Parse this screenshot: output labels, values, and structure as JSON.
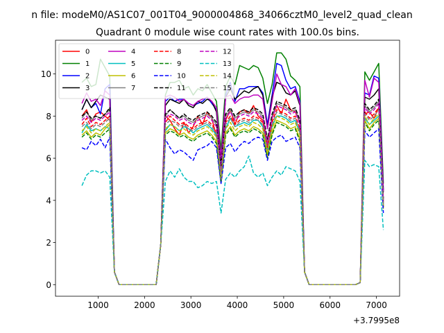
{
  "chart_data": {
    "type": "line",
    "suptitle": "n file: modeM0/AS1C07_001T04_9000004868_34066cztM0_level2_quad_clean",
    "title": "Quadrant 0 module wise count rates with 100.0s bins.",
    "xlabel": "",
    "ylabel": "",
    "x_offset_label": "+3.7995e8",
    "xlim": [
      80,
      7500
    ],
    "ylim": [
      -0.55,
      11.6
    ],
    "x_ticks": [
      1000,
      2000,
      3000,
      4000,
      5000,
      6000,
      7000
    ],
    "x_tick_labels": [
      "1000",
      "2000",
      "3000",
      "4000",
      "5000",
      "6000",
      "7000"
    ],
    "y_ticks": [
      0,
      2,
      4,
      6,
      8,
      10
    ],
    "y_tick_labels": [
      "0",
      "2",
      "4",
      "6",
      "8",
      "10"
    ],
    "legend_location": "upper-left",
    "x": [
      650,
      750,
      850,
      950,
      1050,
      1150,
      1250,
      1350,
      1450,
      1550,
      1650,
      1750,
      1850,
      1950,
      2050,
      2150,
      2250,
      2350,
      2450,
      2550,
      2650,
      2750,
      2850,
      2950,
      3050,
      3150,
      3250,
      3350,
      3450,
      3550,
      3650,
      3750,
      3850,
      3950,
      4050,
      4150,
      4250,
      4350,
      4450,
      4550,
      4650,
      4750,
      4850,
      4950,
      5050,
      5150,
      5250,
      5350,
      5450,
      5550,
      5650,
      5750,
      5850,
      5950,
      6050,
      6150,
      6250,
      6350,
      6450,
      6550,
      6650,
      6750,
      6850,
      6950,
      7050,
      7150
    ],
    "gaps": [
      1650,
      2150,
      5650,
      6150
    ],
    "series": [
      {
        "name": "0",
        "color": "#ff0000",
        "dash": false,
        "values": [
          8.0,
          8.3,
          7.7,
          8.1,
          8.2,
          8.0,
          7.8,
          0.6,
          0.0,
          0.0,
          0.0,
          0.0,
          0.0,
          0.0,
          0.0,
          0.0,
          0.0,
          1.9,
          8.0,
          7.8,
          7.4,
          7.1,
          7.7,
          7.2,
          7.5,
          8.0,
          7.6,
          8.2,
          7.9,
          7.0,
          5.1,
          7.8,
          8.3,
          7.6,
          8.2,
          8.3,
          8.1,
          8.5,
          8.0,
          7.8,
          6.6,
          7.9,
          8.5,
          8.1,
          8.8,
          8.3,
          8.2,
          7.7,
          0.6,
          0.0,
          0.0,
          0.0,
          0.0,
          0.0,
          0.0,
          0.0,
          0.0,
          0.0,
          0.0,
          0.0,
          0.1,
          8.1,
          8.2,
          7.9,
          8.4,
          3.7
        ]
      },
      {
        "name": "1",
        "color": "#008000",
        "dash": false,
        "values": [
          9.6,
          9.8,
          9.4,
          9.5,
          10.7,
          10.3,
          9.9,
          0.6,
          0.0,
          0.0,
          0.0,
          0.0,
          0.0,
          0.0,
          0.0,
          0.0,
          0.0,
          1.9,
          9.0,
          9.6,
          9.6,
          9.7,
          9.3,
          9.4,
          9.0,
          9.3,
          9.2,
          9.5,
          9.1,
          8.7,
          6.4,
          9.4,
          9.9,
          9.5,
          10.4,
          10.3,
          10.2,
          10.4,
          10.3,
          9.8,
          8.6,
          9.5,
          11.0,
          11.0,
          10.7,
          9.9,
          9.7,
          9.4,
          0.6,
          0.0,
          0.0,
          0.0,
          0.0,
          0.0,
          0.0,
          0.0,
          0.0,
          0.0,
          0.0,
          0.0,
          0.1,
          10.1,
          9.7,
          10.1,
          10.5,
          4.8
        ]
      },
      {
        "name": "2",
        "color": "#0000ff",
        "dash": false,
        "values": [
          8.3,
          8.8,
          8.4,
          8.6,
          8.1,
          9.3,
          9.5,
          0.6,
          0.0,
          0.0,
          0.0,
          0.0,
          0.0,
          0.0,
          0.0,
          0.0,
          0.0,
          1.9,
          8.7,
          8.9,
          8.7,
          8.8,
          8.8,
          8.6,
          8.5,
          8.6,
          8.7,
          8.9,
          8.6,
          8.3,
          5.7,
          9.0,
          9.6,
          8.7,
          9.3,
          9.3,
          9.4,
          9.4,
          9.4,
          9.1,
          7.6,
          9.0,
          10.5,
          10.4,
          9.7,
          9.3,
          9.4,
          8.7,
          0.6,
          0.0,
          0.0,
          0.0,
          0.0,
          0.0,
          0.0,
          0.0,
          0.0,
          0.0,
          0.0,
          0.0,
          0.1,
          9.1,
          9.0,
          9.9,
          9.8,
          4.5
        ]
      },
      {
        "name": "3",
        "color": "#000000",
        "dash": false,
        "values": [
          8.3,
          8.8,
          8.4,
          8.7,
          9.0,
          8.9,
          8.8,
          0.6,
          0.0,
          0.0,
          0.0,
          0.0,
          0.0,
          0.0,
          0.0,
          0.0,
          0.0,
          1.9,
          8.5,
          8.8,
          8.7,
          8.6,
          8.8,
          8.5,
          8.4,
          8.7,
          8.6,
          8.8,
          8.7,
          8.2,
          5.9,
          8.9,
          9.3,
          8.8,
          9.0,
          9.2,
          9.1,
          9.3,
          9.4,
          9.0,
          7.4,
          8.9,
          9.6,
          9.5,
          9.1,
          9.0,
          9.2,
          8.5,
          0.6,
          0.0,
          0.0,
          0.0,
          0.0,
          0.0,
          0.0,
          0.0,
          0.0,
          0.0,
          0.0,
          0.0,
          0.1,
          8.9,
          8.8,
          9.0,
          9.3,
          4.4
        ]
      },
      {
        "name": "4",
        "color": "#bf00bf",
        "dash": false,
        "values": [
          8.6,
          9.1,
          8.7,
          8.8,
          8.5,
          9.2,
          9.0,
          0.6,
          0.0,
          0.0,
          0.0,
          0.0,
          0.0,
          0.0,
          0.0,
          0.0,
          0.0,
          1.9,
          8.9,
          9.0,
          8.9,
          8.7,
          8.8,
          8.6,
          8.5,
          8.7,
          8.8,
          8.9,
          8.7,
          8.4,
          6.0,
          8.9,
          9.0,
          8.6,
          8.8,
          8.9,
          8.9,
          9.0,
          9.0,
          8.8,
          7.4,
          8.7,
          10.0,
          9.5,
          9.4,
          9.0,
          9.3,
          8.6,
          0.6,
          0.0,
          0.0,
          0.0,
          0.0,
          0.0,
          0.0,
          0.0,
          0.0,
          0.0,
          0.0,
          0.0,
          0.1,
          9.7,
          8.9,
          9.8,
          9.6,
          4.4
        ]
      },
      {
        "name": "5",
        "color": "#00bfbf",
        "dash": false,
        "values": [
          7.2,
          7.6,
          7.3,
          7.4,
          7.3,
          7.5,
          7.4,
          0.6,
          0.0,
          0.0,
          0.0,
          0.0,
          0.0,
          0.0,
          0.0,
          0.0,
          0.0,
          1.9,
          7.3,
          7.6,
          7.5,
          7.3,
          7.5,
          7.4,
          7.2,
          7.4,
          7.5,
          7.6,
          7.4,
          7.1,
          5.1,
          7.4,
          7.9,
          7.5,
          7.6,
          7.7,
          7.6,
          7.8,
          7.8,
          7.5,
          6.3,
          7.5,
          8.0,
          8.0,
          7.9,
          7.7,
          7.8,
          7.2,
          0.6,
          0.0,
          0.0,
          0.0,
          0.0,
          0.0,
          0.0,
          0.0,
          0.0,
          0.0,
          0.0,
          0.0,
          0.1,
          7.9,
          7.6,
          7.8,
          8.0,
          3.8
        ]
      },
      {
        "name": "6",
        "color": "#bfbf00",
        "dash": false,
        "values": [
          7.1,
          7.3,
          7.0,
          7.2,
          7.1,
          7.4,
          7.6,
          0.6,
          0.0,
          0.0,
          0.0,
          0.0,
          0.0,
          0.0,
          0.0,
          0.0,
          0.0,
          1.9,
          7.2,
          7.4,
          7.3,
          7.1,
          7.2,
          7.0,
          6.9,
          7.1,
          7.2,
          7.3,
          7.1,
          6.8,
          4.9,
          7.2,
          7.5,
          7.1,
          7.3,
          7.4,
          7.3,
          7.5,
          7.4,
          7.2,
          6.1,
          7.2,
          7.8,
          7.7,
          7.6,
          7.4,
          7.5,
          6.9,
          0.6,
          0.0,
          0.0,
          0.0,
          0.0,
          0.0,
          0.0,
          0.0,
          0.0,
          0.0,
          0.0,
          0.0,
          0.1,
          7.8,
          7.4,
          7.7,
          7.9,
          3.6
        ]
      },
      {
        "name": "7",
        "color": "#808080",
        "dash": false,
        "values": [
          7.9,
          8.2,
          7.8,
          8.0,
          7.9,
          8.1,
          8.3,
          0.6,
          0.0,
          0.0,
          0.0,
          0.0,
          0.0,
          0.0,
          0.0,
          0.0,
          0.0,
          1.9,
          8.0,
          8.3,
          8.1,
          7.9,
          8.0,
          7.8,
          7.7,
          7.9,
          8.0,
          8.1,
          7.9,
          7.6,
          5.5,
          8.0,
          8.3,
          7.9,
          8.1,
          8.2,
          8.1,
          8.3,
          8.2,
          8.0,
          6.8,
          8.0,
          8.6,
          8.5,
          8.4,
          8.2,
          8.3,
          7.7,
          0.6,
          0.0,
          0.0,
          0.0,
          0.0,
          0.0,
          0.0,
          0.0,
          0.0,
          0.0,
          0.0,
          0.0,
          0.1,
          8.5,
          8.2,
          8.4,
          8.7,
          4.0
        ]
      },
      {
        "name": "8",
        "color": "#ff0000",
        "dash": true,
        "values": [
          7.6,
          7.9,
          7.5,
          7.7,
          7.6,
          7.8,
          8.0,
          0.6,
          0.0,
          0.0,
          0.0,
          0.0,
          0.0,
          0.0,
          0.0,
          0.0,
          0.0,
          1.9,
          7.7,
          8.0,
          7.8,
          7.6,
          7.7,
          7.5,
          7.4,
          7.6,
          7.7,
          7.8,
          7.6,
          7.3,
          5.3,
          7.7,
          8.0,
          7.6,
          7.8,
          7.9,
          7.8,
          8.0,
          7.9,
          7.7,
          6.5,
          7.7,
          8.3,
          8.2,
          8.1,
          7.9,
          8.0,
          7.4,
          0.6,
          0.0,
          0.0,
          0.0,
          0.0,
          0.0,
          0.0,
          0.0,
          0.0,
          0.0,
          0.0,
          0.0,
          0.1,
          8.2,
          7.9,
          8.1,
          8.4,
          3.9
        ]
      },
      {
        "name": "9",
        "color": "#008000",
        "dash": true,
        "values": [
          7.0,
          7.2,
          6.9,
          7.1,
          7.0,
          7.2,
          7.4,
          0.6,
          0.0,
          0.0,
          0.0,
          0.0,
          0.0,
          0.0,
          0.0,
          0.0,
          0.0,
          1.9,
          7.1,
          7.3,
          7.2,
          7.0,
          7.1,
          6.9,
          6.8,
          7.0,
          7.1,
          7.2,
          7.0,
          6.7,
          4.8,
          7.1,
          7.4,
          7.0,
          7.2,
          7.3,
          7.2,
          7.4,
          7.3,
          7.1,
          6.0,
          7.1,
          7.7,
          7.6,
          7.5,
          7.3,
          7.4,
          6.8,
          0.6,
          0.0,
          0.0,
          0.0,
          0.0,
          0.0,
          0.0,
          0.0,
          0.0,
          0.0,
          0.0,
          0.0,
          0.1,
          7.7,
          7.3,
          7.6,
          7.8,
          3.6
        ]
      },
      {
        "name": "10",
        "color": "#0000ff",
        "dash": true,
        "values": [
          6.5,
          6.4,
          6.8,
          6.6,
          6.9,
          6.5,
          7.0,
          0.6,
          0.0,
          0.0,
          0.0,
          0.0,
          0.0,
          0.0,
          0.0,
          0.0,
          0.0,
          1.9,
          6.9,
          6.5,
          6.2,
          6.4,
          6.3,
          6.1,
          5.9,
          6.4,
          6.5,
          6.6,
          6.8,
          6.5,
          4.8,
          6.5,
          6.7,
          6.3,
          6.6,
          6.8,
          6.7,
          6.9,
          7.0,
          6.9,
          5.9,
          6.8,
          7.0,
          7.1,
          6.8,
          6.9,
          7.0,
          6.5,
          0.6,
          0.0,
          0.0,
          0.0,
          0.0,
          0.0,
          0.0,
          0.0,
          0.0,
          0.0,
          0.0,
          0.0,
          0.1,
          7.3,
          7.0,
          7.2,
          7.4,
          3.4
        ]
      },
      {
        "name": "11",
        "color": "#000000",
        "dash": true,
        "values": [
          8.0,
          8.2,
          7.9,
          8.0,
          7.9,
          8.1,
          8.4,
          0.6,
          0.0,
          0.0,
          0.0,
          0.0,
          0.0,
          0.0,
          0.0,
          0.0,
          0.0,
          1.9,
          8.1,
          8.3,
          8.1,
          7.9,
          8.1,
          7.9,
          7.8,
          8.0,
          8.1,
          8.2,
          8.0,
          7.7,
          5.6,
          8.1,
          8.4,
          8.0,
          8.2,
          8.3,
          8.2,
          8.4,
          8.3,
          8.1,
          6.9,
          8.1,
          8.7,
          8.6,
          8.5,
          8.3,
          8.4,
          7.8,
          0.6,
          0.0,
          0.0,
          0.0,
          0.0,
          0.0,
          0.0,
          0.0,
          0.0,
          0.0,
          0.0,
          0.0,
          0.1,
          8.6,
          8.3,
          8.5,
          8.8,
          4.1
        ]
      },
      {
        "name": "12",
        "color": "#bf00bf",
        "dash": true,
        "values": [
          7.8,
          8.0,
          7.7,
          7.9,
          7.8,
          8.0,
          8.2,
          0.6,
          0.0,
          0.0,
          0.0,
          0.0,
          0.0,
          0.0,
          0.0,
          0.0,
          0.0,
          1.9,
          7.9,
          8.1,
          8.0,
          7.8,
          7.9,
          7.7,
          7.6,
          7.8,
          7.9,
          8.0,
          7.8,
          7.5,
          5.4,
          7.9,
          8.2,
          7.8,
          8.0,
          8.1,
          8.0,
          8.2,
          8.1,
          7.9,
          6.7,
          7.9,
          8.5,
          8.4,
          8.3,
          8.1,
          8.2,
          7.6,
          0.6,
          0.0,
          0.0,
          0.0,
          0.0,
          0.0,
          0.0,
          0.0,
          0.0,
          0.0,
          0.0,
          0.0,
          0.1,
          8.4,
          8.1,
          8.3,
          8.6,
          4.0
        ]
      },
      {
        "name": "13",
        "color": "#00bfbf",
        "dash": true,
        "values": [
          4.7,
          5.2,
          5.4,
          5.4,
          5.3,
          5.4,
          5.1,
          0.6,
          0.0,
          0.0,
          0.0,
          0.0,
          0.0,
          0.0,
          0.0,
          0.0,
          0.0,
          1.9,
          4.9,
          5.4,
          5.1,
          5.5,
          5.1,
          4.9,
          4.9,
          4.6,
          4.7,
          4.9,
          4.8,
          4.9,
          3.4,
          5.0,
          5.3,
          5.1,
          5.4,
          5.6,
          6.1,
          5.3,
          5.1,
          5.3,
          4.7,
          5.1,
          5.4,
          5.2,
          5.6,
          5.5,
          5.4,
          4.9,
          0.6,
          0.0,
          0.0,
          0.0,
          0.0,
          0.0,
          0.0,
          0.0,
          0.0,
          0.0,
          0.0,
          0.0,
          0.1,
          5.9,
          5.6,
          5.7,
          5.6,
          2.6
        ]
      },
      {
        "name": "14",
        "color": "#bfbf00",
        "dash": true,
        "values": [
          7.3,
          7.5,
          7.2,
          7.4,
          7.3,
          7.5,
          7.7,
          0.6,
          0.0,
          0.0,
          0.0,
          0.0,
          0.0,
          0.0,
          0.0,
          0.0,
          0.0,
          1.9,
          7.4,
          7.6,
          7.5,
          7.3,
          7.4,
          7.2,
          7.1,
          7.3,
          7.4,
          7.5,
          7.3,
          7.0,
          5.0,
          7.4,
          7.7,
          7.3,
          7.5,
          7.6,
          7.5,
          7.7,
          7.6,
          7.4,
          6.2,
          7.4,
          8.0,
          7.9,
          7.8,
          7.6,
          7.7,
          7.1,
          0.6,
          0.0,
          0.0,
          0.0,
          0.0,
          0.0,
          0.0,
          0.0,
          0.0,
          0.0,
          0.0,
          0.0,
          0.1,
          8.0,
          7.6,
          7.9,
          8.1,
          3.7
        ]
      },
      {
        "name": "15",
        "color": "#808080",
        "dash": true,
        "values": [
          7.5,
          7.7,
          7.4,
          7.6,
          7.5,
          7.7,
          7.9,
          0.6,
          0.0,
          0.0,
          0.0,
          0.0,
          0.0,
          0.0,
          0.0,
          0.0,
          0.0,
          1.9,
          7.6,
          7.8,
          7.7,
          7.5,
          7.6,
          7.4,
          7.3,
          7.5,
          7.6,
          7.7,
          7.5,
          7.2,
          5.2,
          7.6,
          7.9,
          7.5,
          7.7,
          7.8,
          7.7,
          7.9,
          7.8,
          7.6,
          6.4,
          7.6,
          8.2,
          8.1,
          8.0,
          7.8,
          7.9,
          7.3,
          0.6,
          0.0,
          0.0,
          0.0,
          0.0,
          0.0,
          0.0,
          0.0,
          0.0,
          0.0,
          0.0,
          0.0,
          0.1,
          8.1,
          7.8,
          8.0,
          8.3,
          3.8
        ]
      }
    ]
  }
}
